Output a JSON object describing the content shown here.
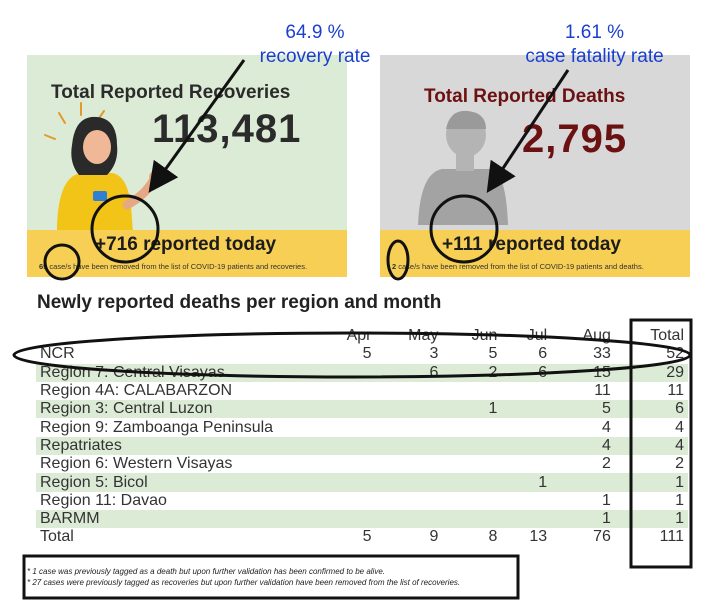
{
  "recovery_card": {
    "title": "Total Reported Recoveries",
    "total": "113,481",
    "today": "+716 reported today",
    "removed_count": "69",
    "removed_text": " case/s have been removed from the list of COVID-19 patients and recoveries."
  },
  "deaths_card": {
    "title": "Total Reported Deaths",
    "total": "2,795",
    "today": "+111 reported today",
    "removed_count": "2",
    "removed_text": " case/s have been removed from the list of COVID-19 patients and deaths."
  },
  "annotations": {
    "recovery_pct": "64.9 %",
    "recovery_label": "recovery rate",
    "fatality_pct": "1.61 %",
    "fatality_label": "case fatality rate"
  },
  "section_title": "Newly reported deaths per region and month",
  "table": {
    "headers": [
      "",
      "Apr",
      "May",
      "Jun",
      "Jul",
      "Aug",
      "Total"
    ],
    "rows": [
      [
        "NCR",
        "5",
        "3",
        "5",
        "6",
        "33",
        "52"
      ],
      [
        "Region 7: Central Visayas",
        "",
        "6",
        "2",
        "6",
        "15",
        "29"
      ],
      [
        "Region 4A: CALABARZON",
        "",
        "",
        "",
        "",
        "11",
        "11"
      ],
      [
        "Region 3: Central Luzon",
        "",
        "",
        "1",
        "",
        "5",
        "6"
      ],
      [
        "Region 9: Zamboanga Peninsula",
        "",
        "",
        "",
        "",
        "4",
        "4"
      ],
      [
        "Repatriates",
        "",
        "",
        "",
        "",
        "4",
        "4"
      ],
      [
        "Region 6: Western Visayas",
        "",
        "",
        "",
        "",
        "2",
        "2"
      ],
      [
        "Region 5: Bicol",
        "",
        "",
        "",
        "1",
        "",
        "1"
      ],
      [
        "Region 11: Davao",
        "",
        "",
        "",
        "",
        "1",
        "1"
      ],
      [
        "BARMM",
        "",
        "",
        "",
        "",
        "1",
        "1"
      ],
      [
        "Total",
        "5",
        "9",
        "8",
        "13",
        "76",
        "111"
      ]
    ]
  },
  "notes": [
    "* 1 case was previously tagged as a death but upon further validation has been confirmed to be alive.",
    "* 27 cases were previously tagged as recoveries but upon further validation have been removed from the list of recoveries."
  ],
  "colors": {
    "recovery_bg": "#dcebd5",
    "deaths_bg": "#d8d8d8",
    "bar_yellow": "#f7cf55",
    "deaths_red": "#6b1111",
    "annotation_blue": "#1a3fd0",
    "row_green": "#dcebd5"
  }
}
